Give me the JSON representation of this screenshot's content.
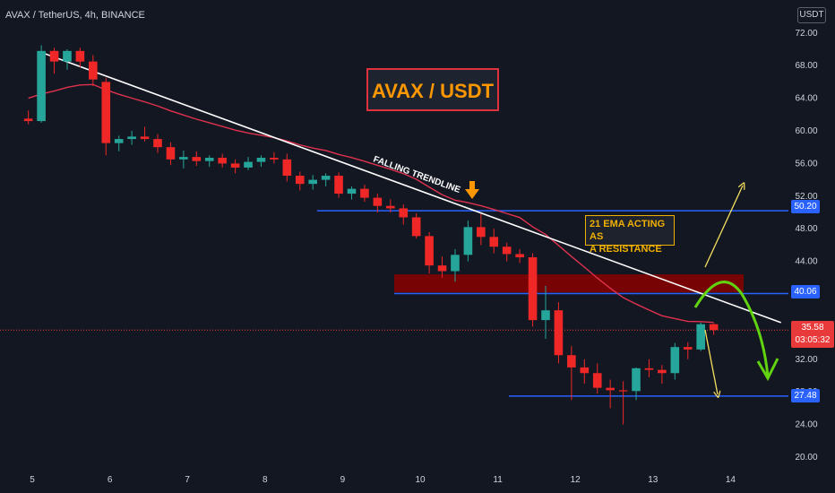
{
  "header": {
    "symbol_line": "AVAX / TetherUS, 4h, BINANCE",
    "unit_label": "USDT"
  },
  "title_box": "AVAX / USDT",
  "annotations": {
    "trendline_label": "FALLING TRENDLINE",
    "ema_note_line1": "21 EMA ACTING AS",
    "ema_note_line2": "A RESISTANCE"
  },
  "price_tags": {
    "level_high": "50.20",
    "level_mid": "40.06",
    "level_low": "27.48",
    "last_price": "35.58",
    "countdown": "03:05:32"
  },
  "colors": {
    "background": "#131722",
    "up": "#26a69a",
    "down": "#ef2727",
    "ema": "#e0324f",
    "trendline": "#ffffff",
    "level_line": "#2962ff",
    "zone": "#8b0000",
    "bull_arrow": "#f6e05e",
    "bear_arrow": "#f6e05e",
    "projection": "#62d30f",
    "text": "#d1d4dc"
  },
  "chart_data": {
    "type": "candlestick",
    "title": "AVAX / TetherUS, 4h, BINANCE",
    "x_ticks": [
      "5",
      "6",
      "7",
      "8",
      "9",
      "10",
      "11",
      "12",
      "13",
      "14"
    ],
    "y_ticks": [
      "72.00",
      "68.00",
      "64.00",
      "60.00",
      "56.00",
      "52.00",
      "48.00",
      "44.00",
      "40.00",
      "36.00",
      "32.00",
      "28.00",
      "24.00",
      "20.00"
    ],
    "ylim": [
      19,
      73
    ],
    "candles_per_day": 6,
    "first_candle_time": 4.95,
    "candles": [
      [
        61.5,
        62.5,
        60.8,
        61.2
      ],
      [
        61.2,
        70.5,
        61.0,
        69.8
      ],
      [
        69.8,
        70.2,
        67.0,
        68.5
      ],
      [
        68.5,
        70.0,
        67.5,
        69.8
      ],
      [
        69.8,
        70.2,
        67.8,
        68.5
      ],
      [
        68.5,
        69.3,
        65.5,
        66.3
      ],
      [
        66.0,
        66.5,
        57.0,
        58.5
      ],
      [
        58.5,
        59.4,
        57.5,
        59.0
      ],
      [
        59.0,
        60.0,
        58.3,
        59.3
      ],
      [
        59.3,
        60.5,
        58.7,
        59.0
      ],
      [
        59.0,
        59.6,
        57.3,
        58.0
      ],
      [
        58.0,
        58.6,
        55.8,
        56.5
      ],
      [
        56.5,
        57.6,
        55.4,
        56.8
      ],
      [
        56.8,
        57.5,
        55.7,
        56.3
      ],
      [
        56.3,
        57.0,
        55.6,
        56.7
      ],
      [
        56.7,
        57.2,
        55.5,
        56.0
      ],
      [
        56.0,
        56.5,
        54.8,
        55.5
      ],
      [
        55.5,
        56.8,
        55.2,
        56.2
      ],
      [
        56.2,
        57.0,
        55.6,
        56.7
      ],
      [
        56.7,
        57.4,
        56.0,
        56.5
      ],
      [
        56.5,
        57.2,
        53.8,
        54.5
      ],
      [
        54.5,
        55.0,
        52.7,
        53.5
      ],
      [
        53.5,
        54.6,
        52.8,
        54.0
      ],
      [
        54.0,
        54.8,
        53.2,
        54.5
      ],
      [
        54.5,
        54.9,
        51.8,
        52.3
      ],
      [
        52.3,
        53.2,
        51.6,
        52.9
      ],
      [
        52.9,
        53.4,
        51.3,
        51.8
      ],
      [
        51.8,
        52.3,
        50.0,
        50.8
      ],
      [
        50.8,
        51.6,
        50.0,
        50.5
      ],
      [
        50.5,
        51.0,
        48.5,
        49.4
      ],
      [
        49.4,
        49.9,
        46.8,
        47.1
      ],
      [
        47.1,
        47.6,
        42.5,
        43.5
      ],
      [
        43.5,
        44.6,
        42.0,
        42.8
      ],
      [
        42.8,
        45.5,
        41.5,
        44.8
      ],
      [
        44.8,
        49.0,
        44.0,
        48.2
      ],
      [
        48.2,
        49.8,
        46.0,
        47.0
      ],
      [
        47.0,
        48.0,
        45.0,
        45.8
      ],
      [
        45.8,
        46.3,
        44.0,
        44.9
      ],
      [
        44.9,
        45.5,
        43.8,
        44.5
      ],
      [
        44.5,
        45.0,
        36.0,
        36.8
      ],
      [
        36.8,
        41.0,
        34.5,
        38.0
      ],
      [
        38.0,
        39.0,
        31.5,
        32.5
      ],
      [
        32.5,
        33.6,
        27.0,
        31.0
      ],
      [
        31.0,
        32.0,
        29.0,
        30.3
      ],
      [
        30.3,
        31.5,
        27.8,
        28.5
      ],
      [
        28.5,
        29.5,
        26.0,
        28.2
      ],
      [
        28.2,
        29.3,
        24.0,
        28.1
      ],
      [
        28.1,
        31.0,
        27.0,
        30.9
      ],
      [
        30.9,
        32.0,
        29.8,
        30.7
      ],
      [
        30.7,
        31.3,
        29.0,
        30.3
      ],
      [
        30.3,
        34.0,
        29.5,
        33.5
      ],
      [
        33.5,
        34.1,
        32.0,
        33.2
      ],
      [
        33.2,
        36.5,
        33.0,
        36.3
      ],
      [
        36.3,
        36.4,
        35.0,
        35.58
      ]
    ],
    "ema21_label": "21 EMA",
    "trendline": {
      "from": [
        5.15,
        69.5
      ],
      "to": [
        14.65,
        36.5
      ]
    },
    "support_levels": [
      50.2,
      40.06,
      27.48
    ],
    "resistance_zone": [
      40.2,
      42.4
    ],
    "last_price": 35.58
  }
}
